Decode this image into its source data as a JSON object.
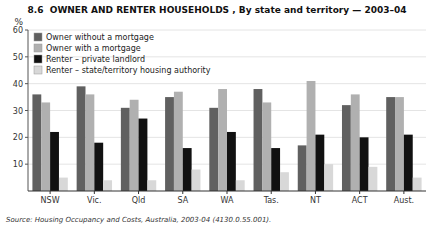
{
  "chart_data": {
    "type": "bar",
    "title": "8.6  OWNER AND RENTER HOUSEHOLDS , By state and territory — 2003–04",
    "y_label": "%",
    "annotations": [
      "Source: Housing Occupancy and Costs, Australia, 2003-04 (4130.0.55.001)."
    ],
    "categories": [
      "NSW",
      "Vic.",
      "Qld",
      "SA",
      "WA",
      "Tas.",
      "NT",
      "ACT",
      "Aust."
    ],
    "series": [
      {
        "name": "Owner without a mortgage",
        "color": "#606060",
        "values": [
          36,
          39,
          31,
          35,
          31,
          38,
          17,
          32,
          35
        ]
      },
      {
        "name": "Owner with a mortgage",
        "color": "#b0b0b0",
        "values": [
          33,
          36,
          34,
          37,
          38,
          33,
          41,
          36,
          35
        ]
      },
      {
        "name": "Renter – private landlord",
        "color": "#111111",
        "values": [
          22,
          18,
          27,
          16,
          22,
          16,
          21,
          20,
          21
        ]
      },
      {
        "name": "Renter – state/territory housing authority",
        "color": "#d8d8d8",
        "values": [
          5,
          4,
          4,
          8,
          4,
          7,
          10,
          9,
          5
        ]
      }
    ],
    "ylim": [
      0,
      60
    ],
    "yticks": [
      10,
      20,
      30,
      40,
      50,
      60
    ],
    "grid": true,
    "legend": "upper left"
  }
}
